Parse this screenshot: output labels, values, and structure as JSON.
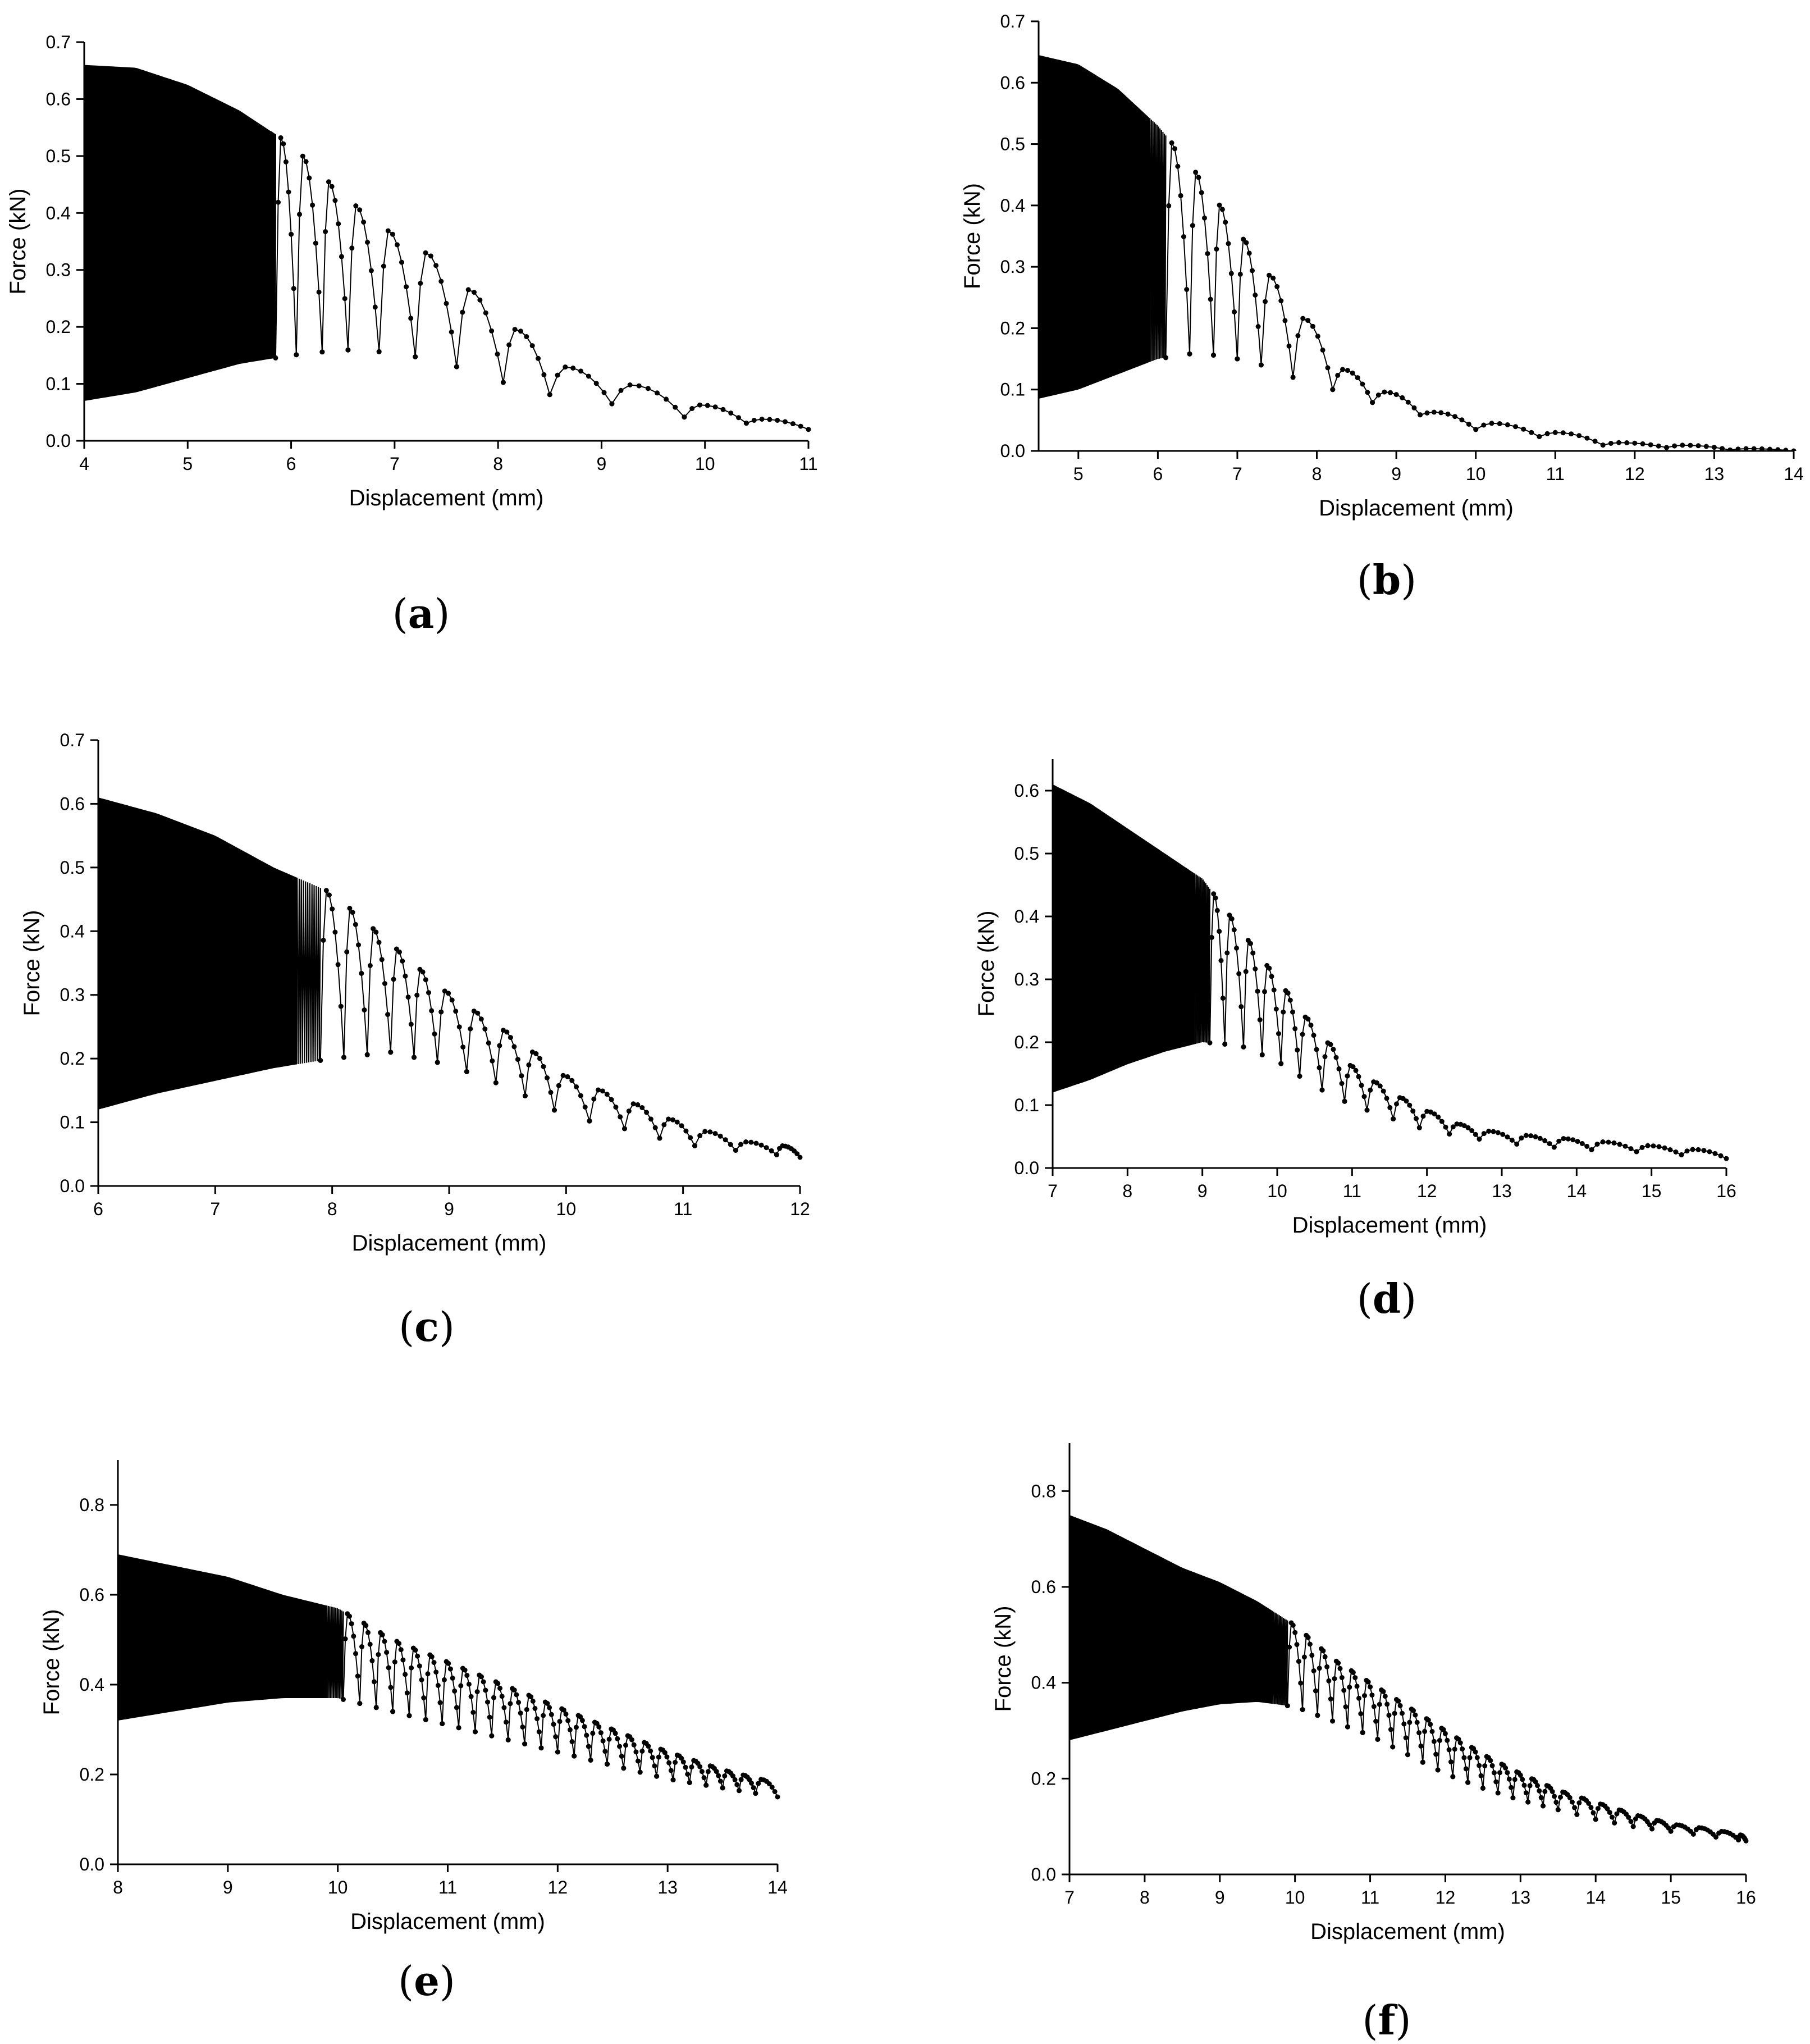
{
  "chart_data": [
    {
      "type": "line",
      "panel": "a",
      "xlabel": "Displacement (mm)",
      "ylabel": "Force (kN)",
      "xlim": [
        4,
        11
      ],
      "ylim": [
        0,
        0.7
      ],
      "xticks": [
        4,
        5,
        6,
        7,
        8,
        9,
        10,
        11
      ],
      "yticks": [
        0.0,
        0.1,
        0.2,
        0.3,
        0.4,
        0.5,
        0.6,
        0.7
      ],
      "upper_envelope": [
        [
          4.0,
          0.66
        ],
        [
          4.5,
          0.655
        ],
        [
          5.0,
          0.625
        ],
        [
          5.5,
          0.58
        ],
        [
          6.0,
          0.52
        ],
        [
          6.5,
          0.43
        ],
        [
          7.0,
          0.36
        ],
        [
          7.4,
          0.32
        ],
        [
          7.8,
          0.25
        ],
        [
          8.3,
          0.175
        ],
        [
          8.8,
          0.11
        ],
        [
          9.4,
          0.095
        ],
        [
          10.0,
          0.06
        ],
        [
          10.5,
          0.04
        ],
        [
          11.0,
          0.02
        ]
      ],
      "lower_envelope": [
        [
          4.0,
          0.07
        ],
        [
          4.5,
          0.085
        ],
        [
          5.0,
          0.11
        ],
        [
          5.5,
          0.135
        ],
        [
          6.0,
          0.15
        ],
        [
          6.5,
          0.16
        ],
        [
          7.0,
          0.155
        ],
        [
          7.4,
          0.14
        ],
        [
          7.8,
          0.12
        ],
        [
          8.3,
          0.085
        ],
        [
          8.8,
          0.075
        ],
        [
          9.4,
          0.055
        ],
        [
          10.0,
          0.035
        ],
        [
          10.5,
          0.03
        ],
        [
          11.0,
          0.02
        ]
      ],
      "dense_until": 5.8,
      "cycle_points": [
        5.85,
        6.05,
        6.3,
        6.55,
        6.85,
        7.2,
        7.6,
        8.05,
        8.5,
        9.1,
        9.8,
        10.4
      ],
      "caption": "a"
    },
    {
      "type": "line",
      "panel": "b",
      "xlabel": "Displacement (mm)",
      "ylabel": "Force (kN)",
      "xlim": [
        4.5,
        14
      ],
      "ylim": [
        0,
        0.7
      ],
      "xticks": [
        5,
        6,
        7,
        8,
        9,
        10,
        11,
        12,
        13,
        14
      ],
      "yticks": [
        0.0,
        0.1,
        0.2,
        0.3,
        0.4,
        0.5,
        0.6,
        0.7
      ],
      "upper_envelope": [
        [
          4.5,
          0.645
        ],
        [
          5.0,
          0.63
        ],
        [
          5.5,
          0.59
        ],
        [
          6.0,
          0.53
        ],
        [
          6.5,
          0.45
        ],
        [
          7.0,
          0.36
        ],
        [
          7.3,
          0.3
        ],
        [
          7.7,
          0.245
        ],
        [
          8.0,
          0.175
        ],
        [
          8.5,
          0.11
        ],
        [
          9.0,
          0.09
        ],
        [
          9.4,
          0.065
        ],
        [
          10.0,
          0.05
        ],
        [
          10.4,
          0.04
        ],
        [
          11.0,
          0.03
        ],
        [
          11.5,
          0.015
        ],
        [
          12.5,
          0.01
        ],
        [
          13.5,
          0.003
        ],
        [
          14.0,
          0.0
        ]
      ],
      "lower_envelope": [
        [
          4.5,
          0.085
        ],
        [
          5.0,
          0.1
        ],
        [
          5.5,
          0.125
        ],
        [
          6.0,
          0.15
        ],
        [
          6.5,
          0.16
        ],
        [
          7.0,
          0.15
        ],
        [
          7.3,
          0.14
        ],
        [
          7.7,
          0.12
        ],
        [
          8.0,
          0.11
        ],
        [
          8.5,
          0.085
        ],
        [
          9.0,
          0.07
        ],
        [
          9.4,
          0.055
        ],
        [
          10.0,
          0.035
        ],
        [
          10.4,
          0.03
        ],
        [
          11.0,
          0.02
        ],
        [
          11.5,
          0.01
        ],
        [
          12.5,
          0.005
        ],
        [
          13.5,
          0.0
        ],
        [
          14.0,
          0.0
        ]
      ],
      "dense_until": 5.9,
      "cycle_points": [
        6.1,
        6.4,
        6.7,
        7.0,
        7.3,
        7.7,
        8.2,
        8.7,
        9.3,
        10.0,
        10.8,
        11.6,
        12.4,
        13.2
      ],
      "caption": "b"
    },
    {
      "type": "line",
      "panel": "c",
      "xlabel": "Displacement (mm)",
      "ylabel": "Force (kN)",
      "xlim": [
        6,
        12
      ],
      "ylim": [
        0,
        0.7
      ],
      "xticks": [
        6,
        7,
        8,
        9,
        10,
        11,
        12
      ],
      "yticks": [
        0.0,
        0.1,
        0.2,
        0.3,
        0.4,
        0.5,
        0.6,
        0.7
      ],
      "upper_envelope": [
        [
          6.0,
          0.61
        ],
        [
          6.5,
          0.585
        ],
        [
          7.0,
          0.55
        ],
        [
          7.5,
          0.5
        ],
        [
          8.0,
          0.46
        ],
        [
          8.5,
          0.38
        ],
        [
          9.0,
          0.3
        ],
        [
          9.5,
          0.24
        ],
        [
          10.0,
          0.17
        ],
        [
          10.5,
          0.135
        ],
        [
          11.0,
          0.095
        ],
        [
          11.5,
          0.07
        ],
        [
          12.0,
          0.06
        ]
      ],
      "lower_envelope": [
        [
          6.0,
          0.12
        ],
        [
          6.5,
          0.145
        ],
        [
          7.0,
          0.165
        ],
        [
          7.5,
          0.185
        ],
        [
          8.0,
          0.2
        ],
        [
          8.5,
          0.21
        ],
        [
          9.0,
          0.19
        ],
        [
          9.5,
          0.155
        ],
        [
          10.0,
          0.11
        ],
        [
          10.5,
          0.09
        ],
        [
          11.0,
          0.065
        ],
        [
          11.5,
          0.055
        ],
        [
          12.0,
          0.045
        ]
      ],
      "dense_until": 7.7,
      "cycle_points": [
        7.9,
        8.1,
        8.3,
        8.5,
        8.7,
        8.9,
        9.15,
        9.4,
        9.65,
        9.9,
        10.2,
        10.5,
        10.8,
        11.1,
        11.45,
        11.8
      ],
      "caption": "c"
    },
    {
      "type": "line",
      "panel": "d",
      "xlabel": "Displacement (mm)",
      "ylabel": "Force (kN)",
      "xlim": [
        7,
        16
      ],
      "ylim": [
        0,
        0.65
      ],
      "xticks": [
        7,
        8,
        9,
        10,
        11,
        12,
        13,
        14,
        15,
        16
      ],
      "yticks": [
        0.0,
        0.1,
        0.2,
        0.3,
        0.4,
        0.5,
        0.6
      ],
      "upper_envelope": [
        [
          7.0,
          0.61
        ],
        [
          7.5,
          0.58
        ],
        [
          8.0,
          0.54
        ],
        [
          8.5,
          0.5
        ],
        [
          9.0,
          0.46
        ],
        [
          9.5,
          0.38
        ],
        [
          10.0,
          0.3
        ],
        [
          10.5,
          0.22
        ],
        [
          11.0,
          0.16
        ],
        [
          11.5,
          0.12
        ],
        [
          12.0,
          0.09
        ],
        [
          12.5,
          0.065
        ],
        [
          13.0,
          0.055
        ],
        [
          14.0,
          0.045
        ],
        [
          15.0,
          0.035
        ],
        [
          16.0,
          0.025
        ]
      ],
      "lower_envelope": [
        [
          7.0,
          0.12
        ],
        [
          7.5,
          0.14
        ],
        [
          8.0,
          0.165
        ],
        [
          8.5,
          0.185
        ],
        [
          9.0,
          0.2
        ],
        [
          9.5,
          0.195
        ],
        [
          10.0,
          0.17
        ],
        [
          10.5,
          0.13
        ],
        [
          11.0,
          0.1
        ],
        [
          11.5,
          0.08
        ],
        [
          12.0,
          0.06
        ],
        [
          12.5,
          0.05
        ],
        [
          13.0,
          0.04
        ],
        [
          14.0,
          0.03
        ],
        [
          15.0,
          0.025
        ],
        [
          16.0,
          0.015
        ]
      ],
      "dense_until": 8.9,
      "cycle_points": [
        9.1,
        9.3,
        9.55,
        9.8,
        10.05,
        10.3,
        10.6,
        10.9,
        11.2,
        11.55,
        11.9,
        12.3,
        12.7,
        13.2,
        13.7,
        14.2,
        14.8,
        15.4
      ],
      "caption": "d"
    },
    {
      "type": "line",
      "panel": "e",
      "xlabel": "Displacement (mm)",
      "ylabel": "Force (kN)",
      "xlim": [
        8,
        14
      ],
      "ylim": [
        0,
        0.9
      ],
      "xticks": [
        8,
        9,
        10,
        11,
        12,
        13,
        14
      ],
      "yticks": [
        0.0,
        0.2,
        0.4,
        0.6,
        0.8
      ],
      "upper_envelope": [
        [
          8.0,
          0.69
        ],
        [
          8.5,
          0.665
        ],
        [
          9.0,
          0.64
        ],
        [
          9.5,
          0.6
        ],
        [
          10.0,
          0.57
        ],
        [
          10.5,
          0.5
        ],
        [
          11.0,
          0.45
        ],
        [
          11.5,
          0.4
        ],
        [
          12.0,
          0.35
        ],
        [
          12.5,
          0.3
        ],
        [
          13.0,
          0.25
        ],
        [
          13.5,
          0.21
        ],
        [
          14.0,
          0.18
        ]
      ],
      "lower_envelope": [
        [
          8.0,
          0.32
        ],
        [
          8.5,
          0.34
        ],
        [
          9.0,
          0.36
        ],
        [
          9.5,
          0.37
        ],
        [
          10.0,
          0.37
        ],
        [
          10.5,
          0.34
        ],
        [
          11.0,
          0.31
        ],
        [
          11.5,
          0.28
        ],
        [
          12.0,
          0.25
        ],
        [
          12.5,
          0.22
        ],
        [
          13.0,
          0.19
        ],
        [
          13.5,
          0.17
        ],
        [
          14.0,
          0.15
        ]
      ],
      "dense_until": 9.9,
      "cycle_points": [
        10.05,
        10.2,
        10.35,
        10.5,
        10.65,
        10.8,
        10.95,
        11.1,
        11.25,
        11.4,
        11.55,
        11.7,
        11.85,
        12.0,
        12.15,
        12.3,
        12.45,
        12.6,
        12.75,
        12.9,
        13.05,
        13.2,
        13.35,
        13.5,
        13.65,
        13.8
      ],
      "caption": "e"
    },
    {
      "type": "line",
      "panel": "f",
      "xlabel": "Displacement (mm)",
      "ylabel": "Force (kN)",
      "xlim": [
        7,
        16
      ],
      "ylim": [
        0,
        0.9
      ],
      "xticks": [
        7,
        8,
        9,
        10,
        11,
        12,
        13,
        14,
        15,
        16
      ],
      "yticks": [
        0.0,
        0.2,
        0.4,
        0.6,
        0.8
      ],
      "upper_envelope": [
        [
          7.0,
          0.75
        ],
        [
          7.5,
          0.72
        ],
        [
          8.0,
          0.68
        ],
        [
          8.5,
          0.64
        ],
        [
          9.0,
          0.61
        ],
        [
          9.5,
          0.57
        ],
        [
          10.0,
          0.52
        ],
        [
          10.5,
          0.45
        ],
        [
          11.0,
          0.4
        ],
        [
          11.5,
          0.35
        ],
        [
          12.0,
          0.3
        ],
        [
          12.5,
          0.25
        ],
        [
          13.0,
          0.21
        ],
        [
          13.5,
          0.175
        ],
        [
          14.0,
          0.15
        ],
        [
          14.5,
          0.125
        ],
        [
          15.0,
          0.105
        ],
        [
          15.5,
          0.095
        ],
        [
          16.0,
          0.08
        ]
      ],
      "lower_envelope": [
        [
          7.0,
          0.28
        ],
        [
          7.5,
          0.3
        ],
        [
          8.0,
          0.32
        ],
        [
          8.5,
          0.34
        ],
        [
          9.0,
          0.355
        ],
        [
          9.5,
          0.36
        ],
        [
          10.0,
          0.35
        ],
        [
          10.5,
          0.32
        ],
        [
          11.0,
          0.29
        ],
        [
          11.5,
          0.25
        ],
        [
          12.0,
          0.21
        ],
        [
          12.5,
          0.18
        ],
        [
          13.0,
          0.155
        ],
        [
          13.5,
          0.135
        ],
        [
          14.0,
          0.115
        ],
        [
          14.5,
          0.1
        ],
        [
          15.0,
          0.09
        ],
        [
          15.5,
          0.08
        ],
        [
          16.0,
          0.07
        ]
      ],
      "dense_until": 9.7,
      "cycle_points": [
        9.9,
        10.1,
        10.3,
        10.5,
        10.7,
        10.9,
        11.1,
        11.3,
        11.5,
        11.7,
        11.9,
        12.1,
        12.3,
        12.5,
        12.7,
        12.9,
        13.1,
        13.3,
        13.5,
        13.75,
        14.0,
        14.25,
        14.5,
        14.75,
        15.0,
        15.3,
        15.6,
        15.9
      ],
      "caption": "f"
    }
  ]
}
